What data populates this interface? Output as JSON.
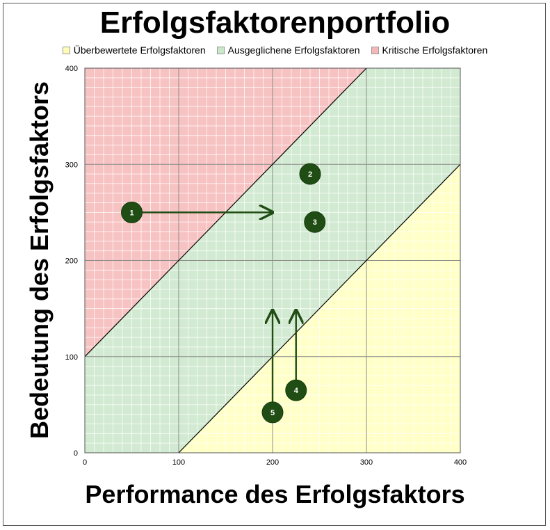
{
  "chart_data": {
    "type": "scatter",
    "title": "Erfolgsfaktorenportfolio",
    "xlabel": "Performance des Erfolgsfaktors",
    "ylabel": "Bedeutung des Erfolgsfaktors",
    "xlim": [
      0,
      400
    ],
    "ylim": [
      0,
      400
    ],
    "xticks": [
      "0",
      "100",
      "200",
      "300",
      "400"
    ],
    "yticks": [
      "0",
      "100",
      "200",
      "300",
      "400"
    ],
    "grid": true,
    "legend_position": "top",
    "regions": [
      {
        "name": "Überbewertete Erfolgsfaktoren",
        "color": "#ffffc8",
        "swatch": "#fffbb8",
        "rule": "y < x - 100"
      },
      {
        "name": "Ausgeglichene Erfolgsfaktoren",
        "color": "#d2ead2",
        "swatch": "#c9e8c9",
        "rule": "x - 100 <= y <= x + 100"
      },
      {
        "name": "Kritische Erfolgsfaktoren",
        "color": "#f7c2c2",
        "swatch": "#f5b8b8",
        "rule": "y > x + 100"
      }
    ],
    "points": [
      {
        "label": "1",
        "x": 50,
        "y": 250
      },
      {
        "label": "2",
        "x": 240,
        "y": 290
      },
      {
        "label": "3",
        "x": 245,
        "y": 240
      },
      {
        "label": "4",
        "x": 225,
        "y": 65
      },
      {
        "label": "5",
        "x": 200,
        "y": 42
      }
    ],
    "arrows": [
      {
        "from": [
          50,
          250
        ],
        "to": [
          200,
          250
        ]
      },
      {
        "from": [
          200,
          42
        ],
        "to": [
          200,
          148
        ]
      },
      {
        "from": [
          225,
          65
        ],
        "to": [
          225,
          148
        ]
      }
    ],
    "colors": {
      "marker": "#1f4d14",
      "arrow": "#1f4d14",
      "marker_text": "#ffffff",
      "diagonal": "#000000",
      "major_grid": "#8c8c8c",
      "minor_grid": "#ffffff"
    }
  }
}
